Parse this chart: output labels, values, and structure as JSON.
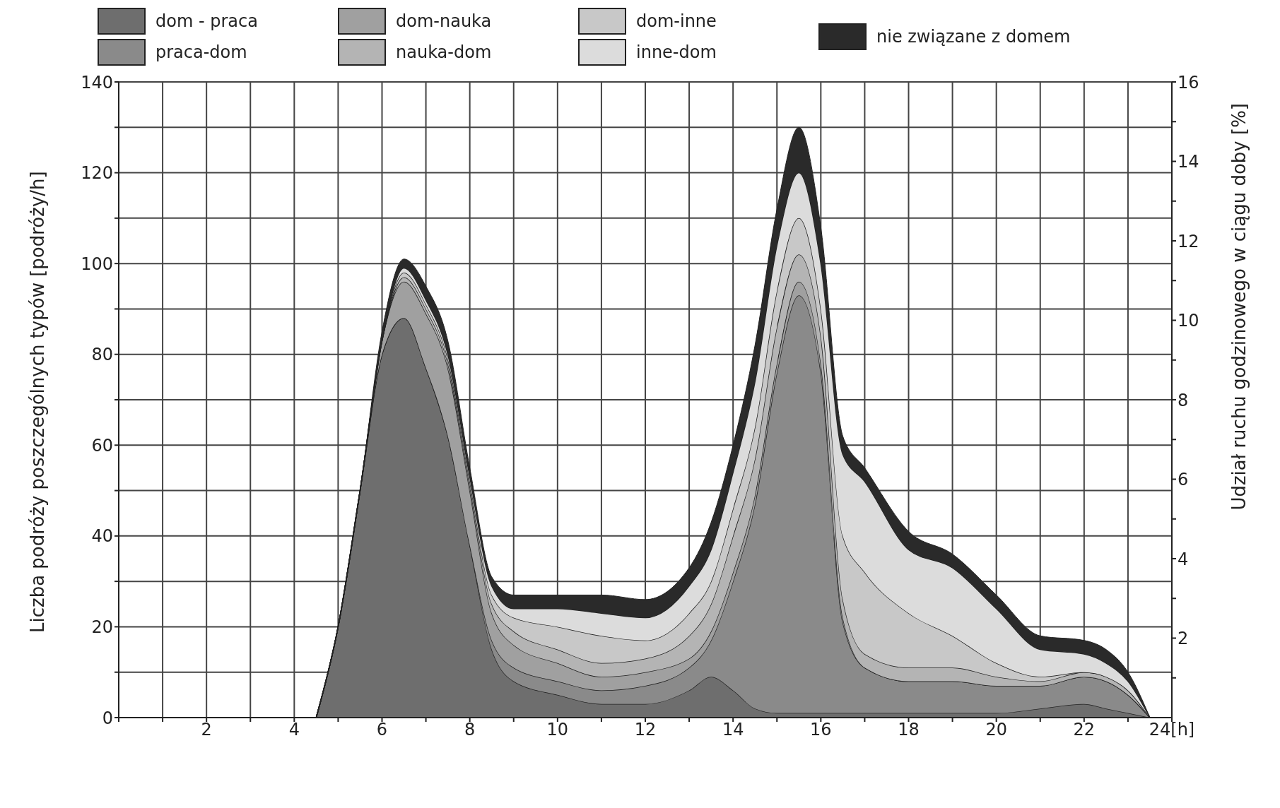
{
  "chart_data": {
    "type": "area",
    "stacked": true,
    "xlabel": null,
    "ylabel": "Liczba podróży poszczególnych typów [podróży/h]",
    "y2label": "Udział ruchu godzinowego w ciągu doby [%]",
    "x": [
      4.5,
      5,
      5.5,
      6,
      6.5,
      7,
      7.5,
      8,
      8.5,
      9,
      10,
      11,
      12,
      13,
      13.5,
      14,
      14.5,
      15,
      15.5,
      16,
      16.5,
      17,
      18,
      19,
      20,
      21,
      22,
      22.5,
      23,
      23.5
    ],
    "series": [
      {
        "name": "dom - praca",
        "color": "#6e6e6e",
        "values": [
          0,
          20,
          50,
          80,
          88,
          77,
          62,
          38,
          15,
          8,
          5,
          3,
          3,
          6,
          9,
          6,
          2,
          1,
          1,
          1,
          1,
          1,
          1,
          1,
          1,
          2,
          3,
          2,
          1,
          0
        ]
      },
      {
        "name": "praca-dom",
        "color": "#8a8a8a",
        "values": [
          0,
          0,
          0,
          0,
          0,
          0,
          0,
          0,
          2,
          3,
          3,
          3,
          4,
          5,
          8,
          24,
          45,
          75,
          92,
          75,
          20,
          10,
          7,
          7,
          6,
          5,
          6,
          6,
          4,
          0
        ]
      },
      {
        "name": "dom-nauka",
        "color": "#a0a0a0",
        "values": [
          0,
          0,
          0,
          3,
          8,
          12,
          15,
          12,
          6,
          5,
          4,
          3,
          3,
          2,
          2,
          2,
          2,
          2,
          3,
          2,
          1,
          0,
          0,
          0,
          0,
          0,
          0,
          0,
          0,
          0
        ]
      },
      {
        "name": "nauka-dom",
        "color": "#b4b4b4",
        "values": [
          0,
          0,
          0,
          0,
          1,
          1,
          1,
          1,
          2,
          3,
          3,
          3,
          3,
          5,
          6,
          8,
          8,
          8,
          6,
          6,
          4,
          3,
          3,
          3,
          2,
          1,
          1,
          1,
          1,
          0
        ]
      },
      {
        "name": "dom-inne",
        "color": "#c8c8c8",
        "values": [
          0,
          0,
          0,
          0,
          1,
          1,
          1,
          1,
          2,
          3,
          5,
          6,
          4,
          5,
          5,
          6,
          7,
          8,
          8,
          6,
          14,
          18,
          12,
          7,
          3,
          1,
          0,
          0,
          0,
          0
        ]
      },
      {
        "name": "inne-dom",
        "color": "#dcdcdc",
        "values": [
          0,
          0,
          0,
          0,
          1,
          1,
          1,
          1,
          2,
          2,
          4,
          5,
          5,
          6,
          7,
          8,
          10,
          10,
          10,
          10,
          18,
          20,
          14,
          15,
          12,
          6,
          4,
          3,
          2,
          0
        ]
      },
      {
        "name": "nie związane z domem",
        "color": "#2a2a2a",
        "values": [
          0,
          0,
          0,
          2,
          2,
          3,
          3,
          2,
          2,
          3,
          3,
          4,
          4,
          4,
          6,
          6,
          8,
          8,
          10,
          8,
          4,
          3,
          4,
          3,
          3,
          3,
          3,
          3,
          2,
          0
        ]
      }
    ],
    "xlim": [
      0,
      24
    ],
    "xticks": [
      {
        "value": 0,
        "label": null
      },
      {
        "value": 1,
        "label": null
      },
      2,
      {
        "value": 3,
        "label": null
      },
      4,
      {
        "value": 5,
        "label": null
      },
      6,
      {
        "value": 7,
        "label": null
      },
      8,
      {
        "value": 9,
        "label": null
      },
      10,
      {
        "value": 11,
        "label": null
      },
      12,
      {
        "value": 13,
        "label": null
      },
      14,
      {
        "value": 15,
        "label": null
      },
      16,
      {
        "value": 17,
        "label": null
      },
      18,
      {
        "value": 19,
        "label": null
      },
      20,
      {
        "value": 21,
        "label": null
      },
      22,
      {
        "value": 23,
        "label": null
      },
      {
        "value": 24,
        "label": "24[h]"
      }
    ],
    "ylim": [
      0,
      140
    ],
    "yticks": [
      0,
      {
        "value": 10,
        "label": null
      },
      20,
      {
        "value": 30,
        "label": null
      },
      40,
      {
        "value": 50,
        "label": null
      },
      60,
      {
        "value": 70,
        "label": null
      },
      80,
      {
        "value": 90,
        "label": null
      },
      100,
      {
        "value": 110,
        "label": null
      },
      120,
      {
        "value": 130,
        "label": null
      },
      140
    ],
    "y2lim": [
      0,
      16
    ],
    "y2ticks": [
      {
        "value": 1,
        "label": null
      },
      2,
      {
        "value": 3,
        "label": null
      },
      4,
      {
        "value": 5,
        "label": null
      },
      6,
      {
        "value": 7,
        "label": null
      },
      8,
      {
        "value": 9,
        "label": null
      },
      10,
      {
        "value": 11,
        "label": null
      },
      12,
      {
        "value": 13,
        "label": null
      },
      14,
      {
        "value": 15,
        "label": null
      },
      16
    ],
    "grid": true,
    "legend": "top"
  }
}
